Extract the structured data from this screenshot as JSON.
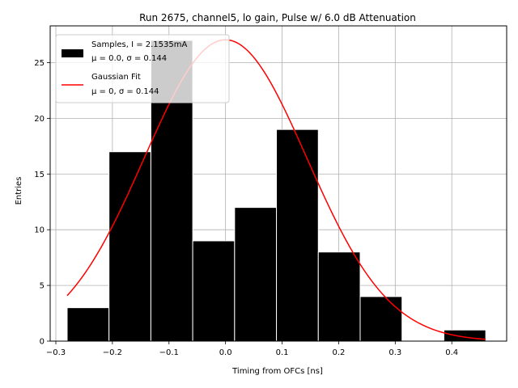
{
  "chart_data": {
    "type": "bar",
    "title": "Run 2675, channel5, lo gain, Pulse w/ 6.0 dB Attenuation",
    "xlabel": "Timing from OFCs [ns]",
    "ylabel": "Entries",
    "xlim": [
      -0.31,
      0.497
    ],
    "ylim": [
      0,
      28.3
    ],
    "xticks": [
      -0.3,
      -0.2,
      -0.1,
      0.0,
      0.1,
      0.2,
      0.3,
      0.4
    ],
    "xtick_labels": [
      "−0.3",
      "−0.2",
      "−0.1",
      "0.0",
      "0.1",
      "0.2",
      "0.3",
      "0.4"
    ],
    "yticks": [
      0,
      5,
      10,
      15,
      20,
      25
    ],
    "ytick_labels": [
      "0",
      "5",
      "10",
      "15",
      "20",
      "25"
    ],
    "grid": true,
    "bar_color": "#000000",
    "bar_edge_color": "#ffffff",
    "fit_color": "#ff0000",
    "histogram": {
      "name": "Samples, I = 2.1535mA",
      "bin_edges": [
        -0.28,
        -0.206,
        -0.132,
        -0.058,
        0.016,
        0.09,
        0.164,
        0.238,
        0.312,
        0.386,
        0.46
      ],
      "counts": [
        3,
        17,
        27,
        9,
        12,
        19,
        8,
        4,
        0,
        1
      ]
    },
    "fit": {
      "name": "Gaussian Fit",
      "mu": 0.0,
      "sigma": 0.144,
      "amplitude": 27.05,
      "x_range": [
        -0.28,
        0.46
      ]
    },
    "legend": {
      "position": "upper-left",
      "entries": [
        {
          "label": "Samples, I = 2.1535mA",
          "stats": "μ = 0.0, σ = 0.144"
        },
        {
          "label": "Gaussian Fit",
          "stats": "μ = 0, σ = 0.144"
        }
      ]
    }
  }
}
